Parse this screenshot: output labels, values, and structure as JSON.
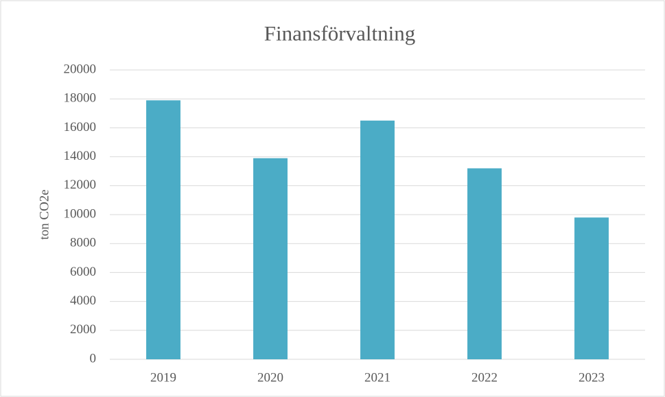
{
  "chart_data": {
    "type": "bar",
    "title": "Finansförvaltning",
    "y_label": "ton CO2e",
    "categories": [
      "2019",
      "2020",
      "2021",
      "2022",
      "2023"
    ],
    "values": [
      17900,
      13900,
      16500,
      13200,
      9800
    ],
    "color": "#4bacc6",
    "ylim": [
      0,
      20000
    ],
    "yticks": [
      0,
      2000,
      4000,
      6000,
      8000,
      10000,
      12000,
      14000,
      16000,
      18000,
      20000
    ],
    "grid": true
  }
}
